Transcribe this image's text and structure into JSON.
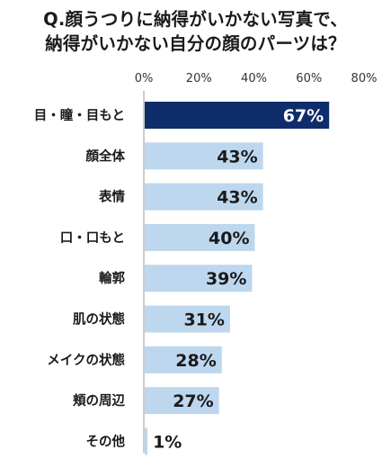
{
  "title_lines": [
    "Q.顔うつりに納得がいかない写真で、",
    "納得がいかない自分の顔のパーツは？"
  ],
  "chart_data": {
    "type": "bar",
    "orientation": "horizontal",
    "title": "Q.顔うつりに納得がいかない写真で、納得がいかない自分の顔のパーツは？",
    "categories": [
      "目・瞳・目もと",
      "顔全体",
      "表情",
      "口・口もと",
      "輪郭",
      "肌の状態",
      "メイクの状態",
      "頬の周辺",
      "その他"
    ],
    "values": [
      67,
      43,
      43,
      40,
      39,
      31,
      28,
      27,
      1
    ],
    "value_labels": [
      "67%",
      "43%",
      "43%",
      "40%",
      "39%",
      "31%",
      "28%",
      "27%",
      "1%"
    ],
    "xlim": [
      0,
      80
    ],
    "xticks": [
      0,
      20,
      40,
      60,
      80
    ],
    "xtick_labels": [
      "0%",
      "20%",
      "40%",
      "60%",
      "80%"
    ],
    "highlight_index": 0,
    "colors": {
      "highlight": "#0f2d6b",
      "bar": "#bdd7ee",
      "highlight_label": "#ffffff",
      "label": "#1a1a1a",
      "axis": "#999999"
    },
    "grid": false,
    "legend": "none"
  }
}
